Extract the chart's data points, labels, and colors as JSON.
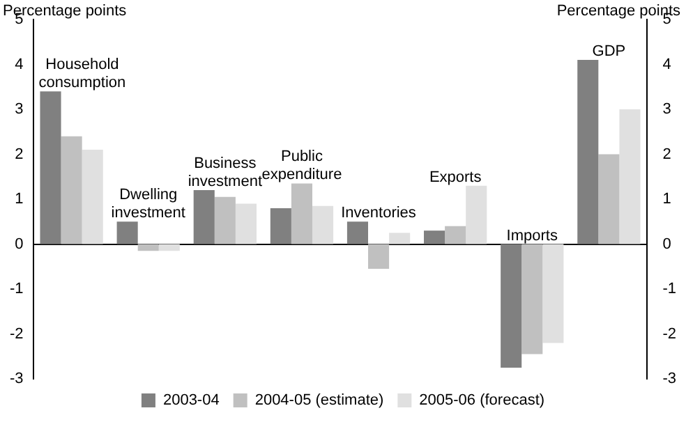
{
  "chart_data": {
    "type": "bar",
    "ylabel": "Percentage points",
    "y2label": "Percentage points",
    "categories": [
      "Household consumption",
      "Dwelling investment",
      "Business investment",
      "Public expenditure",
      "Inventories",
      "Exports",
      "Imports",
      "GDP"
    ],
    "series": [
      {
        "name": "2003-04",
        "color": "#808080",
        "values": [
          3.4,
          0.5,
          1.2,
          0.8,
          0.5,
          0.3,
          -2.75,
          4.1
        ]
      },
      {
        "name": "2004-05 (estimate)",
        "color": "#c0c0c0",
        "values": [
          2.4,
          -0.15,
          1.05,
          1.35,
          -0.55,
          0.4,
          -2.45,
          2.0
        ]
      },
      {
        "name": "2005-06 (forecast)",
        "color": "#e0e0e0",
        "values": [
          2.1,
          -0.15,
          0.9,
          0.85,
          0.25,
          1.3,
          -2.2,
          3.0
        ]
      }
    ],
    "ylim": [
      -3,
      5
    ],
    "yticks": [
      -3,
      -2,
      -1,
      0,
      1,
      2,
      3,
      4,
      5
    ],
    "y2lim": [
      -3,
      5
    ],
    "y2ticks": [
      -3,
      -2,
      -1,
      0,
      1,
      2,
      3,
      4,
      5
    ],
    "grid": false,
    "legend": "bottom"
  }
}
